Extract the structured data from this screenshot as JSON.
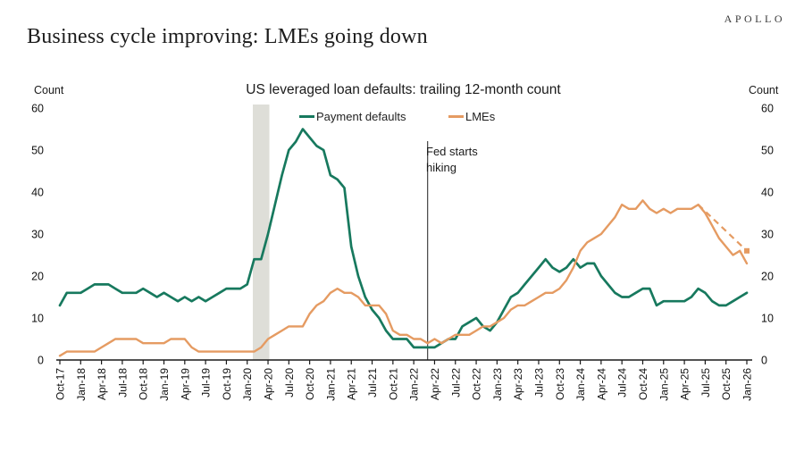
{
  "header": {
    "brand": "APOLLO",
    "title": "Business cycle improving: LMEs going down"
  },
  "chart": {
    "title": "US leveraged loan defaults: trailing 12-month count",
    "axis_unit_label": "Count",
    "annotation": {
      "line1": "Fed starts",
      "line2": "hiking"
    }
  },
  "chart_data": {
    "type": "line",
    "title": "US leveraged loan defaults: trailing 12-month count",
    "xlabel": "",
    "ylabel": "Count",
    "ylim": [
      0,
      60
    ],
    "yticks": [
      0,
      10,
      20,
      30,
      40,
      50,
      60
    ],
    "grid": false,
    "legend_position": "top",
    "x_tick_interval_months": 3,
    "months": [
      "Oct-17",
      "Nov-17",
      "Dec-17",
      "Jan-18",
      "Feb-18",
      "Mar-18",
      "Apr-18",
      "May-18",
      "Jun-18",
      "Jul-18",
      "Aug-18",
      "Sep-18",
      "Oct-18",
      "Nov-18",
      "Dec-18",
      "Jan-19",
      "Feb-19",
      "Mar-19",
      "Apr-19",
      "May-19",
      "Jun-19",
      "Jul-19",
      "Aug-19",
      "Sep-19",
      "Oct-19",
      "Nov-19",
      "Dec-19",
      "Jan-20",
      "Feb-20",
      "Mar-20",
      "Apr-20",
      "May-20",
      "Jun-20",
      "Jul-20",
      "Aug-20",
      "Sep-20",
      "Oct-20",
      "Nov-20",
      "Dec-20",
      "Jan-21",
      "Feb-21",
      "Mar-21",
      "Apr-21",
      "May-21",
      "Jun-21",
      "Jul-21",
      "Aug-21",
      "Sep-21",
      "Oct-21",
      "Nov-21",
      "Dec-21",
      "Jan-22",
      "Feb-22",
      "Mar-22",
      "Apr-22",
      "May-22",
      "Jun-22",
      "Jul-22",
      "Aug-22",
      "Sep-22",
      "Oct-22",
      "Nov-22",
      "Dec-22",
      "Jan-23",
      "Feb-23",
      "Mar-23",
      "Apr-23",
      "May-23",
      "Jun-23",
      "Jul-23",
      "Aug-23",
      "Sep-23",
      "Oct-23",
      "Nov-23",
      "Dec-23",
      "Jan-24",
      "Feb-24",
      "Mar-24",
      "Apr-24",
      "May-24",
      "Jun-24",
      "Jul-24",
      "Aug-24",
      "Sep-24",
      "Oct-24",
      "Nov-24",
      "Dec-24",
      "Jan-25",
      "Feb-25",
      "Mar-25",
      "Apr-25",
      "May-25",
      "Jun-25",
      "Jul-25",
      "Aug-25",
      "Sep-25",
      "Oct-25",
      "Nov-25",
      "Dec-25",
      "Jan-26"
    ],
    "series": [
      {
        "name": "Payment defaults",
        "color": "#17795E",
        "values": [
          13,
          16,
          16,
          16,
          17,
          18,
          18,
          18,
          17,
          16,
          16,
          16,
          17,
          16,
          15,
          16,
          15,
          14,
          15,
          14,
          15,
          14,
          15,
          16,
          17,
          17,
          17,
          18,
          24,
          24,
          30,
          37,
          44,
          50,
          52,
          55,
          53,
          51,
          50,
          44,
          43,
          41,
          27,
          20,
          15,
          12,
          10,
          7,
          5,
          5,
          5,
          3,
          3,
          3,
          3,
          4,
          5,
          5,
          8,
          9,
          10,
          8,
          7,
          9,
          12,
          15,
          16,
          18,
          20,
          22,
          24,
          22,
          21,
          22,
          24,
          22,
          23,
          23,
          20,
          18,
          16,
          15,
          15,
          16,
          17,
          17,
          13,
          14,
          14,
          14,
          14,
          15,
          17,
          16,
          14,
          13,
          13,
          14,
          15,
          16
        ]
      },
      {
        "name": "LMEs",
        "color": "#E59B62",
        "values": [
          1,
          2,
          2,
          2,
          2,
          2,
          3,
          4,
          5,
          5,
          5,
          5,
          4,
          4,
          4,
          4,
          5,
          5,
          5,
          3,
          2,
          2,
          2,
          2,
          2,
          2,
          2,
          2,
          2,
          3,
          5,
          6,
          7,
          8,
          8,
          8,
          11,
          13,
          14,
          16,
          17,
          16,
          16,
          15,
          13,
          13,
          13,
          11,
          7,
          6,
          6,
          5,
          5,
          4,
          5,
          4,
          5,
          6,
          6,
          6,
          7,
          8,
          8,
          9,
          10,
          12,
          13,
          13,
          14,
          15,
          16,
          16,
          17,
          19,
          22,
          26,
          28,
          29,
          30,
          32,
          34,
          37,
          36,
          36,
          38,
          36,
          35,
          36,
          35,
          36,
          36,
          36,
          37,
          35,
          32,
          29,
          27,
          25,
          26,
          23
        ]
      }
    ],
    "forecast": {
      "name": "LMEs projection (dashed)",
      "color": "#E59B62",
      "style": "dashed",
      "end_marker": true,
      "points": [
        {
          "month": "Jun-25",
          "value": 37
        },
        {
          "month": "Jan-26",
          "value": 26
        }
      ]
    },
    "recession_band": {
      "from": "Feb-20",
      "to": "Apr-20",
      "color": "#DEDED8"
    },
    "vline": {
      "month": "Mar-22",
      "label": "Fed starts hiking",
      "color": "#333333"
    }
  }
}
